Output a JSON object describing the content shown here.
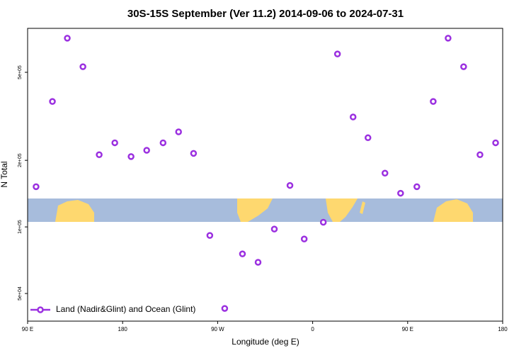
{
  "chart_data": {
    "type": "scatter",
    "title": "30S-15S September (Ver 11.2)   2014-09-06 to 2024-07-31",
    "x_label": "Longitude (deg E)",
    "y_label": "N Total",
    "log_y": true,
    "legend_position": "bottom left",
    "xlim": [
      90,
      540
    ],
    "xticks": [
      {
        "value": 90,
        "label": "90 E"
      },
      180,
      {
        "value": 270,
        "label": "90 W"
      },
      {
        "value": 360,
        "label": "0"
      },
      {
        "value": 450,
        "label": "90 E"
      },
      {
        "value": 540,
        "label": "180"
      }
    ],
    "ylim": [
      37500,
      790000
    ],
    "yticks": [
      {
        "value": 50000,
        "label": "5e+04"
      },
      {
        "value": 100000,
        "label": "1e+05"
      },
      {
        "value": 200000,
        "label": "2e+05"
      },
      {
        "value": 500000,
        "label": "5e+05"
      }
    ],
    "series": [
      {
        "name": "Land (Nadir&Glint) and Ocean (Glint)",
        "color": "#9b30e0",
        "x": [
          98,
          113.5,
          127.6,
          142.4,
          157.8,
          172.6,
          188,
          202.8,
          218.3,
          233,
          247.2,
          262.6,
          276.7,
          293.5,
          308.3,
          323.7,
          338.5,
          352,
          370.1,
          383.5,
          398.3,
          412.4,
          428.5,
          443.3,
          458.7,
          474.2,
          488.3,
          503,
          518.5,
          533.3
        ],
        "values": [
          152000,
          369000,
          713000,
          530000,
          212000,
          240000,
          208000,
          222000,
          240000,
          269000,
          215000,
          91500,
          42800,
          75500,
          69200,
          97800,
          154000,
          88200,
          105000,
          605000,
          314000,
          253000,
          175000,
          142000,
          152000,
          369000,
          713000,
          530000,
          212000,
          240000
        ]
      }
    ]
  }
}
